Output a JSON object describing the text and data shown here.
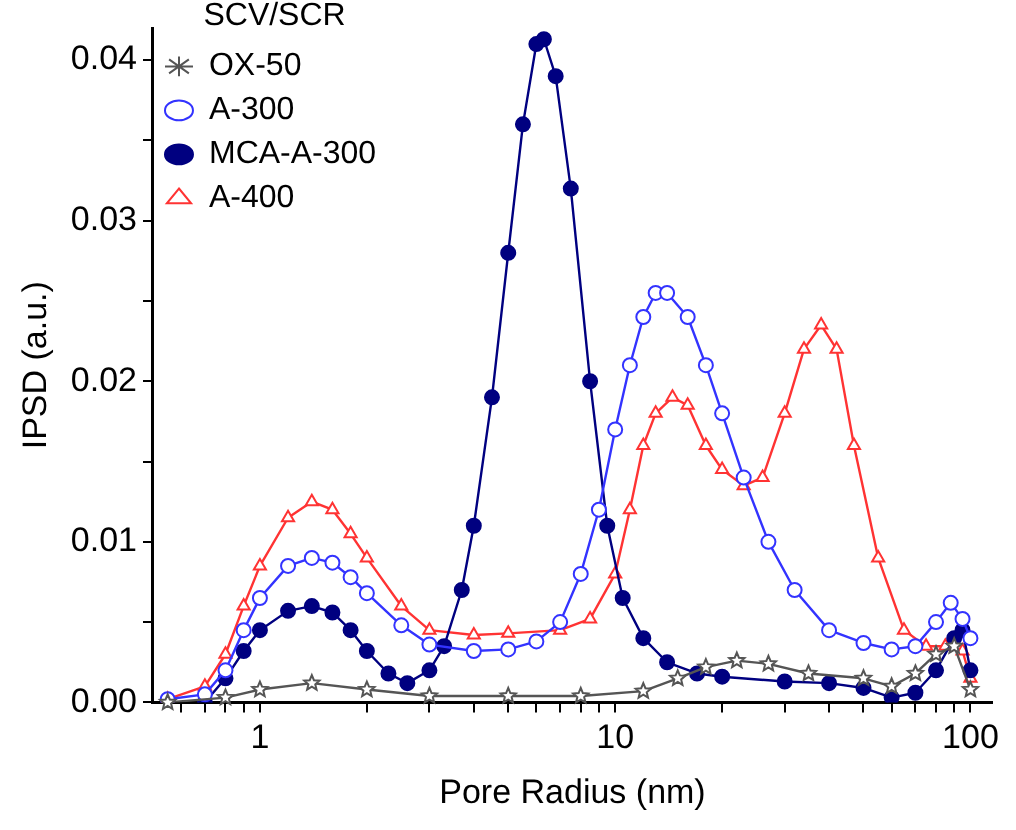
{
  "chart_data": {
    "type": "line",
    "xlabel": "Pore Radius (nm)",
    "ylabel": "IPSD (a.u.)",
    "legend_title": "SCV/SCR",
    "legend": "top left",
    "log": "x",
    "grid": false,
    "xlim": [
      0.5,
      115
    ],
    "xticks": [
      {
        "value": 0.6,
        "label": null
      },
      {
        "value": 0.7,
        "label": null
      },
      {
        "value": 0.8,
        "label": null
      },
      {
        "value": 0.9,
        "label": null
      },
      1,
      {
        "value": 2,
        "label": null
      },
      {
        "value": 3,
        "label": null
      },
      {
        "value": 4,
        "label": null
      },
      {
        "value": 5,
        "label": null
      },
      {
        "value": 6,
        "label": null
      },
      {
        "value": 7,
        "label": null
      },
      {
        "value": 8,
        "label": null
      },
      {
        "value": 9,
        "label": null
      },
      10,
      {
        "value": 20,
        "label": null
      },
      {
        "value": 30,
        "label": null
      },
      {
        "value": 40,
        "label": null
      },
      {
        "value": 50,
        "label": null
      },
      {
        "value": 60,
        "label": null
      },
      {
        "value": 70,
        "label": null
      },
      {
        "value": 80,
        "label": null
      },
      {
        "value": 90,
        "label": null
      },
      100
    ],
    "ylim": [
      0,
      0.042
    ],
    "yticks": [
      {
        "value": 0,
        "label": "0.00"
      },
      {
        "value": 0.005,
        "label": null
      },
      {
        "value": 0.01,
        "label": "0.01"
      },
      {
        "value": 0.015,
        "label": null
      },
      {
        "value": 0.02,
        "label": "0.02"
      },
      {
        "value": 0.025,
        "label": null
      },
      {
        "value": 0.03,
        "label": "0.03"
      },
      {
        "value": 0.035,
        "label": null
      },
      {
        "value": 0.04,
        "label": "0.04"
      }
    ],
    "series": [
      {
        "name": "OX-50",
        "color": "#555555",
        "marker": "star",
        "x": [
          0.55,
          0.8,
          1.0,
          1.4,
          2,
          3,
          5,
          8,
          12,
          15,
          18,
          22,
          27,
          35,
          50,
          60,
          70,
          80,
          90,
          100
        ],
        "values": [
          0,
          0.0003,
          0.0008,
          0.0012,
          0.0008,
          0.0004,
          0.0004,
          0.0004,
          0.0007,
          0.0015,
          0.0022,
          0.0026,
          0.0024,
          0.0018,
          0.0015,
          0.001,
          0.0018,
          0.003,
          0.0035,
          0.0008
        ]
      },
      {
        "name": "A-300",
        "color": "#3333ff",
        "marker": "circle",
        "x": [
          0.55,
          0.7,
          0.8,
          0.9,
          1.0,
          1.2,
          1.4,
          1.6,
          1.8,
          2.0,
          2.5,
          3.0,
          4,
          5,
          6,
          7,
          8,
          9,
          10,
          11,
          12,
          13,
          14,
          16,
          18,
          20,
          23,
          27,
          32,
          40,
          50,
          60,
          70,
          80,
          88,
          95,
          100
        ],
        "values": [
          0.0002,
          0.0005,
          0.002,
          0.0045,
          0.0065,
          0.0085,
          0.009,
          0.0087,
          0.0078,
          0.0068,
          0.0048,
          0.0036,
          0.0032,
          0.0033,
          0.0038,
          0.005,
          0.008,
          0.012,
          0.017,
          0.021,
          0.024,
          0.0255,
          0.0255,
          0.024,
          0.021,
          0.018,
          0.014,
          0.01,
          0.007,
          0.0045,
          0.0037,
          0.0033,
          0.0035,
          0.005,
          0.0062,
          0.0052,
          0.004
        ]
      },
      {
        "name": "MCA-A-300",
        "color": "#000080",
        "marker": "circle_filled",
        "x": [
          0.7,
          0.8,
          0.9,
          1.0,
          1.2,
          1.4,
          1.6,
          1.8,
          2.0,
          2.3,
          2.6,
          3.0,
          3.3,
          3.7,
          4.0,
          4.5,
          5.0,
          5.5,
          6.0,
          6.3,
          6.8,
          7.5,
          8.5,
          9.5,
          10.5,
          12,
          14,
          17,
          20,
          30,
          40,
          50,
          60,
          70,
          80,
          90,
          95,
          100
        ],
        "values": [
          0,
          0.0015,
          0.0032,
          0.0045,
          0.0057,
          0.006,
          0.0056,
          0.0045,
          0.0032,
          0.0018,
          0.0012,
          0.002,
          0.0035,
          0.007,
          0.011,
          0.019,
          0.028,
          0.036,
          0.041,
          0.0413,
          0.039,
          0.032,
          0.02,
          0.011,
          0.0065,
          0.004,
          0.0025,
          0.0018,
          0.0016,
          0.0013,
          0.0012,
          0.0009,
          0.0003,
          0.0006,
          0.002,
          0.004,
          0.0045,
          0.002
        ]
      },
      {
        "name": "A-400",
        "color": "#ff3333",
        "marker": "triangle",
        "x": [
          0.55,
          0.7,
          0.8,
          0.9,
          1.0,
          1.2,
          1.4,
          1.6,
          1.8,
          2.0,
          2.5,
          3.0,
          4,
          5,
          7,
          8.5,
          10,
          11,
          12,
          13,
          14.5,
          16,
          18,
          20,
          23,
          26,
          30,
          34,
          38,
          42,
          47,
          55,
          65,
          75,
          85,
          95,
          100
        ],
        "values": [
          0.0002,
          0.001,
          0.003,
          0.006,
          0.0085,
          0.0115,
          0.0125,
          0.012,
          0.0105,
          0.009,
          0.006,
          0.0045,
          0.0042,
          0.0043,
          0.0045,
          0.0052,
          0.008,
          0.012,
          0.016,
          0.018,
          0.019,
          0.0185,
          0.016,
          0.0145,
          0.0135,
          0.014,
          0.018,
          0.022,
          0.0235,
          0.022,
          0.016,
          0.009,
          0.0045,
          0.0035,
          0.0035,
          0.0032,
          0.0015
        ]
      }
    ]
  }
}
